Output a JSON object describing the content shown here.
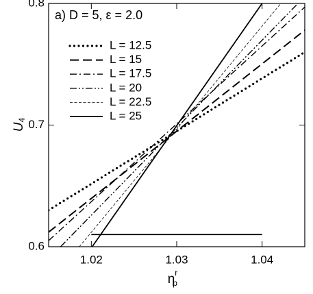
{
  "chart_data": {
    "type": "line",
    "title": "a) D = 5, ε = 2.0",
    "xlabel": {
      "main": "η",
      "sup": "r",
      "sub": "p"
    },
    "ylabel": {
      "main": "U",
      "sub": "4"
    },
    "xlim": [
      1.015,
      1.045
    ],
    "xticks": [
      1.02,
      1.03,
      1.04
    ],
    "ylim": [
      0.6,
      0.8
    ],
    "yticks": [
      0.6,
      0.7,
      0.8
    ],
    "series": [
      {
        "name": "L = 12.5",
        "color": "#000000",
        "dash": "dotted",
        "x": [
          1.015,
          1.045
        ],
        "values": [
          0.63,
          0.76
        ]
      },
      {
        "name": "L = 15",
        "color": "#000000",
        "dash": "dashed",
        "x": [
          1.015,
          1.045
        ],
        "values": [
          0.612,
          0.778
        ]
      },
      {
        "name": "L = 17.5",
        "color": "#000000",
        "dash": "dashdot",
        "x": [
          1.015,
          1.045
        ],
        "values": [
          0.605,
          0.797
        ]
      },
      {
        "name": "L = 20",
        "color": "#000000",
        "dash": "dashdotdot",
        "x": [
          1.0164,
          1.0442
        ],
        "values": [
          0.6,
          0.8
        ]
      },
      {
        "name": "L = 22.5",
        "color": "#000000",
        "dash": "thin",
        "x": [
          1.0186,
          1.0422
        ],
        "values": [
          0.6,
          0.8
        ]
      },
      {
        "name": "L = 25",
        "color": "#000000",
        "dash": "solid",
        "x": [
          1.0201,
          1.04
        ],
        "values": [
          0.6,
          0.8
        ]
      }
    ],
    "hline": {
      "x": [
        1.02,
        1.04
      ],
      "y": 0.61
    }
  }
}
